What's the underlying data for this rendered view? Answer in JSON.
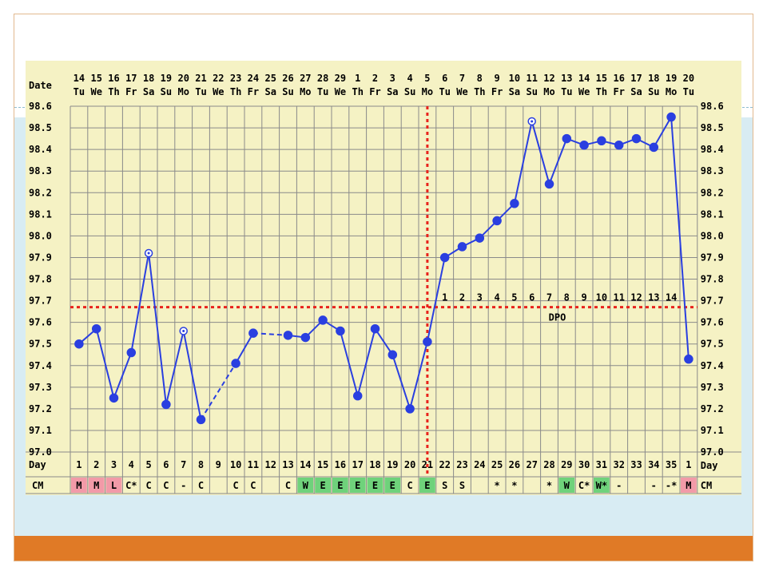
{
  "colors": {
    "chart_background": "#f5f2c4",
    "grid": "#8a8a8a",
    "line": "#2a3fe0",
    "reference_line": "#e8231c",
    "menstruation_cell": "#f29aa8",
    "egg_white_cell": "#6fd27b",
    "slide_band": "#d8ecf3",
    "slide_footer": "#e07a26"
  },
  "chart_data": {
    "type": "line",
    "title": "",
    "row_labels": {
      "date": "Date",
      "day": "Day",
      "cm": "CM",
      "dpo": "DPO"
    },
    "dates": [
      "14",
      "15",
      "16",
      "17",
      "18",
      "19",
      "20",
      "21",
      "22",
      "23",
      "24",
      "25",
      "26",
      "27",
      "28",
      "29",
      "1",
      "2",
      "3",
      "4",
      "5",
      "6",
      "7",
      "8",
      "9",
      "10",
      "11",
      "12",
      "13",
      "14",
      "15",
      "16",
      "17",
      "18",
      "19",
      "20"
    ],
    "weekdays": [
      "Tu",
      "We",
      "Th",
      "Fr",
      "Sa",
      "Su",
      "Mo",
      "Tu",
      "We",
      "Th",
      "Fr",
      "Sa",
      "Su",
      "Mo",
      "Tu",
      "We",
      "Th",
      "Fr",
      "Sa",
      "Su",
      "Mo",
      "Tu",
      "We",
      "Th",
      "Fr",
      "Sa",
      "Su",
      "Mo",
      "Tu",
      "We",
      "Th",
      "Fr",
      "Sa",
      "Su",
      "Mo",
      "Tu"
    ],
    "cycle_days": [
      "1",
      "2",
      "3",
      "4",
      "5",
      "6",
      "7",
      "8",
      "9",
      "10",
      "11",
      "12",
      "13",
      "14",
      "15",
      "16",
      "17",
      "18",
      "19",
      "20",
      "21",
      "22",
      "23",
      "24",
      "25",
      "26",
      "27",
      "28",
      "29",
      "30",
      "31",
      "32",
      "33",
      "34",
      "35",
      "1"
    ],
    "cm": [
      "M",
      "M",
      "L",
      "C*",
      "C",
      "C",
      "-",
      "C",
      "",
      "C",
      "C",
      "",
      "C",
      "W",
      "E",
      "E",
      "E",
      "E",
      "E",
      "C",
      "E",
      "S",
      "S",
      "",
      "*",
      "*",
      "",
      "*",
      "W",
      "C*",
      "W*",
      "-",
      "",
      "-",
      "-*",
      "M"
    ],
    "cm_highlight": [
      "M",
      "M",
      "M",
      "",
      "",
      "",
      "",
      "",
      "",
      "",
      "",
      "",
      "",
      "EW",
      "EW",
      "EW",
      "EW",
      "EW",
      "EW",
      "",
      "EW",
      "",
      "",
      "",
      "",
      "",
      "",
      "",
      "EW",
      "",
      "EW",
      "",
      "",
      "",
      "",
      "M"
    ],
    "temperatures": [
      97.5,
      97.57,
      97.25,
      97.46,
      97.92,
      97.22,
      97.56,
      97.15,
      null,
      97.41,
      97.55,
      null,
      97.54,
      97.53,
      97.61,
      97.56,
      97.26,
      97.57,
      97.45,
      97.2,
      97.51,
      97.9,
      97.95,
      97.99,
      98.07,
      98.15,
      98.53,
      98.24,
      98.45,
      98.42,
      98.44,
      98.42,
      98.45,
      98.41,
      98.55,
      97.43
    ],
    "open_markers": [
      false,
      false,
      false,
      false,
      true,
      false,
      true,
      false,
      false,
      false,
      false,
      false,
      false,
      false,
      false,
      false,
      false,
      false,
      false,
      false,
      false,
      false,
      false,
      false,
      false,
      false,
      true,
      false,
      false,
      false,
      false,
      false,
      false,
      false,
      false,
      false
    ],
    "dashed_gaps": [
      [
        8,
        10
      ],
      [
        11,
        13
      ]
    ],
    "ylim": [
      97.0,
      98.6
    ],
    "y_ticks": [
      "97.0",
      "97.1",
      "97.2",
      "97.3",
      "97.4",
      "97.5",
      "97.6",
      "97.7",
      "97.8",
      "97.9",
      "98.0",
      "98.1",
      "98.2",
      "98.3",
      "98.4",
      "98.5",
      "98.6"
    ],
    "coverline": 97.67,
    "ovulation_day": 21,
    "dpo_labels": [
      "1",
      "2",
      "3",
      "4",
      "5",
      "6",
      "7",
      "8",
      "9",
      "10",
      "11",
      "12",
      "13",
      "14"
    ],
    "grid": true,
    "legend": "none"
  }
}
